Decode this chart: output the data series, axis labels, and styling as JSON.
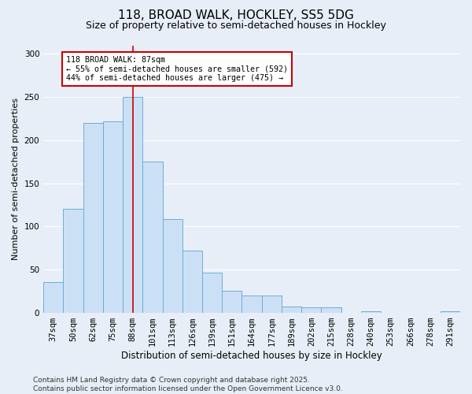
{
  "title1": "118, BROAD WALK, HOCKLEY, SS5 5DG",
  "title2": "Size of property relative to semi-detached houses in Hockley",
  "xlabel": "Distribution of semi-detached houses by size in Hockley",
  "ylabel": "Number of semi-detached properties",
  "categories": [
    "37sqm",
    "50sqm",
    "62sqm",
    "75sqm",
    "88sqm",
    "101sqm",
    "113sqm",
    "126sqm",
    "139sqm",
    "151sqm",
    "164sqm",
    "177sqm",
    "189sqm",
    "202sqm",
    "215sqm",
    "228sqm",
    "240sqm",
    "253sqm",
    "266sqm",
    "278sqm",
    "291sqm"
  ],
  "values": [
    35,
    120,
    220,
    222,
    250,
    175,
    108,
    72,
    46,
    25,
    20,
    20,
    7,
    6,
    6,
    0,
    1,
    0,
    0,
    0,
    1
  ],
  "bar_color": "#cce0f5",
  "bar_edge_color": "#6baed6",
  "vline_x": 4,
  "vline_color": "#cc0000",
  "annotation_text": "118 BROAD WALK: 87sqm\n← 55% of semi-detached houses are smaller (592)\n44% of semi-detached houses are larger (475) →",
  "annotation_box_color": "#ffffff",
  "annotation_box_edge": "#cc0000",
  "footer": "Contains HM Land Registry data © Crown copyright and database right 2025.\nContains public sector information licensed under the Open Government Licence v3.0.",
  "ylim": [
    0,
    310
  ],
  "yticks": [
    0,
    50,
    100,
    150,
    200,
    250,
    300
  ],
  "background_color": "#e8eef7",
  "grid_color": "#ffffff",
  "title1_fontsize": 11,
  "title2_fontsize": 9,
  "xlabel_fontsize": 8.5,
  "ylabel_fontsize": 8,
  "tick_fontsize": 7.5,
  "footer_fontsize": 6.5
}
